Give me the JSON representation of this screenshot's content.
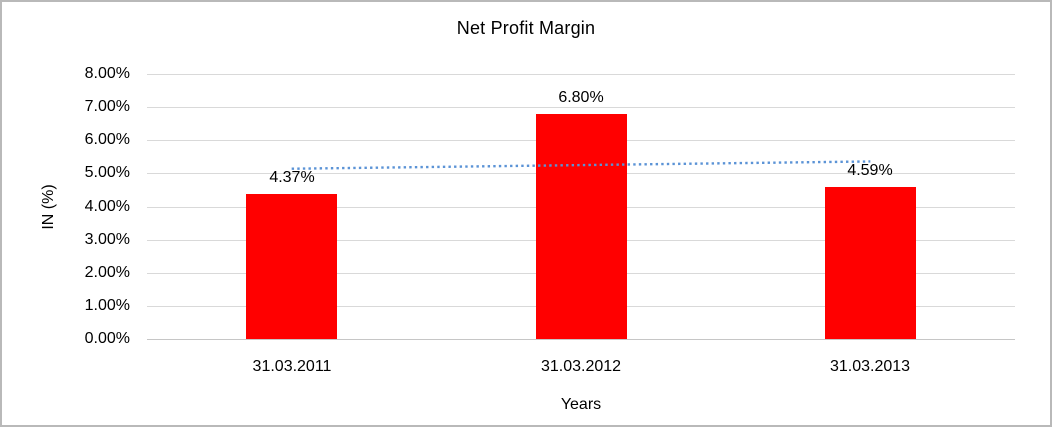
{
  "chart_data": {
    "type": "bar",
    "title": "Net Profit Margin",
    "categories": [
      "31.03.2011",
      "31.03.2012",
      "31.03.2013"
    ],
    "values": [
      4.37,
      6.8,
      4.59
    ],
    "value_labels": [
      "4.37%",
      "6.80%",
      "4.59%"
    ],
    "xlabel": "Years",
    "ylabel": "IN (%)",
    "ylim": [
      0,
      8
    ],
    "ytick_step": 1,
    "ytick_labels": [
      "8.00%",
      "7.00%",
      "6.00%",
      "5.00%",
      "4.00%",
      "3.00%",
      "2.00%",
      "1.00%",
      "0.00%"
    ],
    "grid": true,
    "legend": "none",
    "bar_color": "#ff0000",
    "gridline_color": "#d9d9d9",
    "trendline": {
      "type": "linear",
      "style": "dotted",
      "color": "#5b93d6",
      "start_value": 5.14,
      "end_value": 5.36
    }
  }
}
